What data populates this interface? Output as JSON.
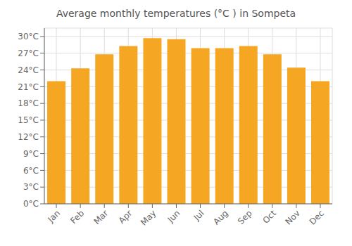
{
  "chart_data": {
    "type": "bar",
    "title": "Average monthly temperatures (°C ) in Sompeta",
    "categories": [
      "Jan",
      "Feb",
      "Mar",
      "Apr",
      "May",
      "Jun",
      "Jul",
      "Aug",
      "Sep",
      "Oct",
      "Nov",
      "Dec"
    ],
    "values": [
      22.0,
      24.3,
      26.8,
      28.3,
      29.7,
      29.5,
      27.9,
      27.9,
      28.3,
      26.8,
      24.4,
      22.0
    ],
    "color": "#F5A623",
    "ylim": [
      0,
      31.5
    ],
    "yticks": [
      {
        "value": 0,
        "label": "0°C"
      },
      {
        "value": 3,
        "label": "3°C"
      },
      {
        "value": 6,
        "label": "6°C"
      },
      {
        "value": 9,
        "label": "9°C"
      },
      {
        "value": 12,
        "label": "12°C"
      },
      {
        "value": 15,
        "label": "15°C"
      },
      {
        "value": 18,
        "label": "18°C"
      },
      {
        "value": 21,
        "label": "21°C"
      },
      {
        "value": 24,
        "label": "24°C"
      },
      {
        "value": 27,
        "label": "27°C"
      },
      {
        "value": 30,
        "label": "30°C"
      }
    ],
    "grid": true
  }
}
